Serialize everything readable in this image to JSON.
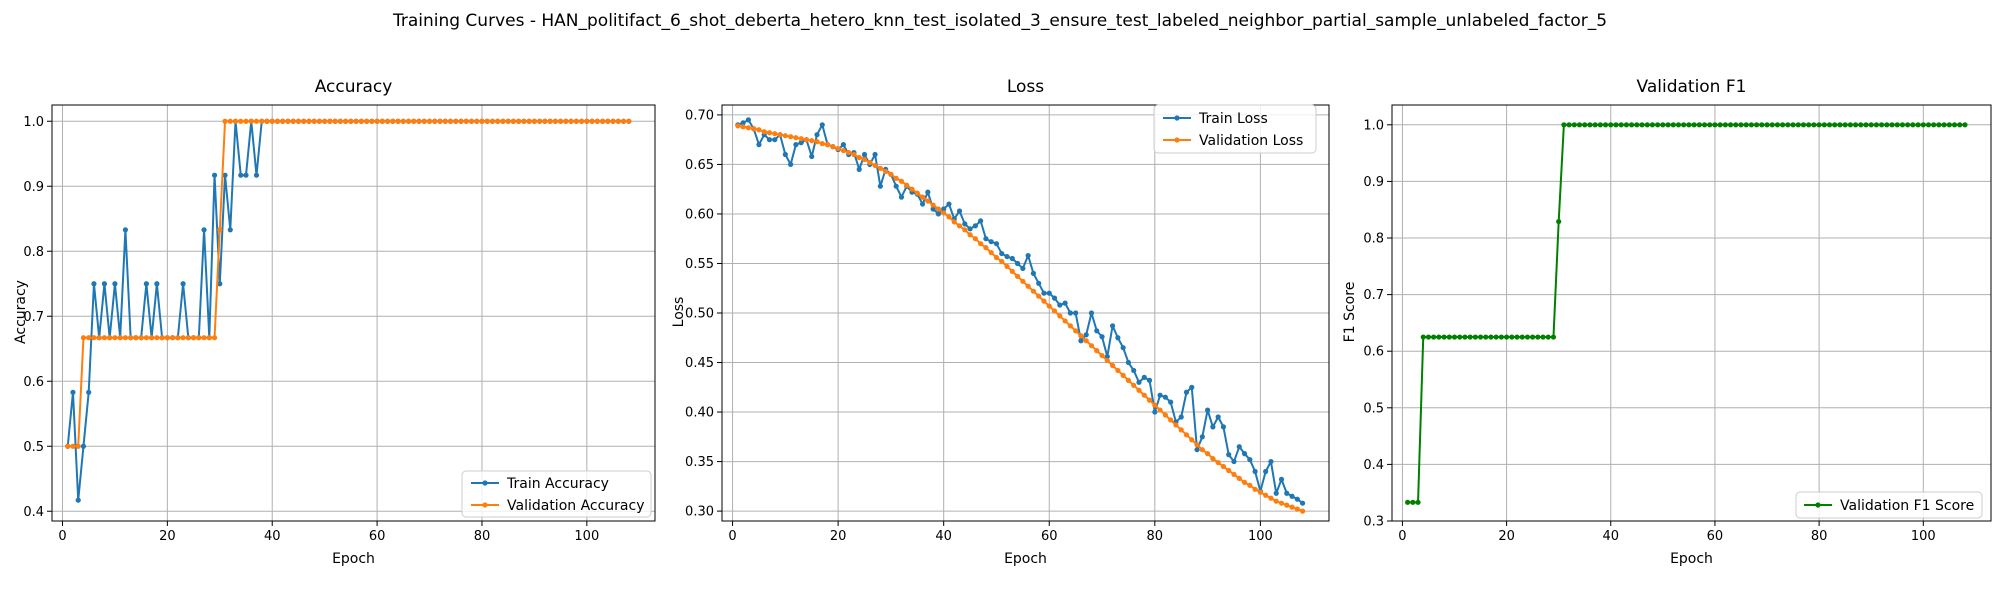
{
  "figure": {
    "title": "Training Curves - HAN_politifact_6_shot_deberta_hetero_knn_test_isolated_3_ensure_test_labeled_neighbor_partial_sample_unlabeled_factor_5"
  },
  "colors": {
    "train": "#1f77b4",
    "validation": "#ff7f0e",
    "f1": "#008000",
    "grid": "#b0b0b0"
  },
  "chart_data": [
    {
      "type": "line",
      "title": "Accuracy",
      "xlabel": "Epoch",
      "ylabel": "Accuracy",
      "xlim": [
        -2,
        113
      ],
      "ylim": [
        0.385,
        1.025
      ],
      "xticks": [
        0,
        20,
        40,
        60,
        80,
        100
      ],
      "yticks": [
        0.4,
        0.5,
        0.6,
        0.7,
        0.8,
        0.9,
        1.0
      ],
      "grid": true,
      "legend": "lower-right",
      "x": {
        "start": 1,
        "end": 108
      },
      "series": [
        {
          "name": "Train Accuracy",
          "color": "#1f77b4",
          "values": [
            0.5,
            0.583,
            0.417,
            0.5,
            0.583,
            0.75,
            0.667,
            0.75,
            0.667,
            0.75,
            0.667,
            0.833,
            0.667,
            0.667,
            0.667,
            0.75,
            0.667,
            0.75,
            0.667,
            0.667,
            0.667,
            0.667,
            0.75,
            0.667,
            0.667,
            0.667,
            0.833,
            0.667,
            0.917,
            0.75,
            0.917,
            0.833,
            1.0,
            0.917,
            0.917,
            1.0,
            0.917,
            1.0,
            1.0,
            1.0,
            1.0,
            1.0,
            1.0,
            1.0,
            1.0,
            1.0,
            1.0,
            1.0,
            1.0,
            1.0,
            1.0,
            1.0,
            1.0,
            1.0,
            1.0,
            1.0,
            1.0,
            1.0,
            1.0,
            1.0,
            1.0,
            1.0,
            1.0,
            1.0,
            1.0,
            1.0,
            1.0,
            1.0,
            1.0,
            1.0,
            1.0,
            1.0,
            1.0,
            1.0,
            1.0,
            1.0,
            1.0,
            1.0,
            1.0,
            1.0,
            1.0,
            1.0,
            1.0,
            1.0,
            1.0,
            1.0,
            1.0,
            1.0,
            1.0,
            1.0,
            1.0,
            1.0,
            1.0,
            1.0,
            1.0,
            1.0,
            1.0,
            1.0,
            1.0,
            1.0,
            1.0,
            1.0,
            1.0,
            1.0,
            1.0,
            1.0,
            1.0,
            1.0
          ]
        },
        {
          "name": "Validation Accuracy",
          "color": "#ff7f0e",
          "values": [
            0.5,
            0.5,
            0.5,
            0.667,
            0.667,
            0.667,
            0.667,
            0.667,
            0.667,
            0.667,
            0.667,
            0.667,
            0.667,
            0.667,
            0.667,
            0.667,
            0.667,
            0.667,
            0.667,
            0.667,
            0.667,
            0.667,
            0.667,
            0.667,
            0.667,
            0.667,
            0.667,
            0.667,
            0.667,
            0.833,
            1.0,
            1.0,
            1.0,
            1.0,
            1.0,
            1.0,
            1.0,
            1.0,
            1.0,
            1.0,
            1.0,
            1.0,
            1.0,
            1.0,
            1.0,
            1.0,
            1.0,
            1.0,
            1.0,
            1.0,
            1.0,
            1.0,
            1.0,
            1.0,
            1.0,
            1.0,
            1.0,
            1.0,
            1.0,
            1.0,
            1.0,
            1.0,
            1.0,
            1.0,
            1.0,
            1.0,
            1.0,
            1.0,
            1.0,
            1.0,
            1.0,
            1.0,
            1.0,
            1.0,
            1.0,
            1.0,
            1.0,
            1.0,
            1.0,
            1.0,
            1.0,
            1.0,
            1.0,
            1.0,
            1.0,
            1.0,
            1.0,
            1.0,
            1.0,
            1.0,
            1.0,
            1.0,
            1.0,
            1.0,
            1.0,
            1.0,
            1.0,
            1.0,
            1.0,
            1.0,
            1.0,
            1.0,
            1.0,
            1.0,
            1.0,
            1.0,
            1.0,
            1.0
          ]
        }
      ]
    },
    {
      "type": "line",
      "title": "Loss",
      "xlabel": "Epoch",
      "ylabel": "Loss",
      "xlim": [
        -2,
        113
      ],
      "ylim": [
        0.29,
        0.71
      ],
      "xticks": [
        0,
        20,
        40,
        60,
        80,
        100
      ],
      "yticks": [
        0.3,
        0.35,
        0.4,
        0.45,
        0.5,
        0.55,
        0.6,
        0.65,
        0.7
      ],
      "grid": true,
      "legend": "upper-right",
      "x": {
        "start": 1,
        "end": 108
      },
      "series": [
        {
          "name": "Train Loss",
          "color": "#1f77b4",
          "values": [
            0.69,
            0.692,
            0.695,
            0.686,
            0.67,
            0.68,
            0.675,
            0.675,
            0.68,
            0.66,
            0.65,
            0.67,
            0.672,
            0.675,
            0.658,
            0.68,
            0.69,
            0.67,
            0.668,
            0.665,
            0.67,
            0.66,
            0.662,
            0.645,
            0.66,
            0.65,
            0.66,
            0.628,
            0.645,
            0.64,
            0.628,
            0.617,
            0.628,
            0.622,
            0.62,
            0.61,
            0.622,
            0.605,
            0.6,
            0.605,
            0.61,
            0.595,
            0.603,
            0.59,
            0.585,
            0.588,
            0.593,
            0.575,
            0.572,
            0.57,
            0.56,
            0.557,
            0.555,
            0.55,
            0.545,
            0.558,
            0.54,
            0.53,
            0.52,
            0.52,
            0.515,
            0.508,
            0.51,
            0.5,
            0.5,
            0.472,
            0.478,
            0.5,
            0.482,
            0.476,
            0.456,
            0.487,
            0.475,
            0.465,
            0.45,
            0.442,
            0.43,
            0.435,
            0.432,
            0.4,
            0.417,
            0.415,
            0.41,
            0.39,
            0.395,
            0.42,
            0.425,
            0.362,
            0.375,
            0.402,
            0.385,
            0.395,
            0.385,
            0.357,
            0.35,
            0.365,
            0.358,
            0.352,
            0.34,
            0.32,
            0.34,
            0.35,
            0.318,
            0.332,
            0.318,
            0.315,
            0.312,
            0.308
          ]
        },
        {
          "name": "Validation Loss",
          "color": "#ff7f0e",
          "values": [
            0.689,
            0.688,
            0.687,
            0.686,
            0.685,
            0.683,
            0.682,
            0.681,
            0.68,
            0.679,
            0.678,
            0.677,
            0.676,
            0.675,
            0.674,
            0.673,
            0.671,
            0.67,
            0.668,
            0.666,
            0.664,
            0.662,
            0.66,
            0.657,
            0.655,
            0.652,
            0.649,
            0.646,
            0.643,
            0.64,
            0.636,
            0.633,
            0.629,
            0.625,
            0.621,
            0.617,
            0.613,
            0.609,
            0.605,
            0.601,
            0.597,
            0.592,
            0.588,
            0.584,
            0.579,
            0.575,
            0.57,
            0.566,
            0.561,
            0.556,
            0.552,
            0.547,
            0.542,
            0.537,
            0.532,
            0.527,
            0.522,
            0.517,
            0.512,
            0.507,
            0.502,
            0.497,
            0.492,
            0.487,
            0.482,
            0.477,
            0.472,
            0.467,
            0.462,
            0.457,
            0.452,
            0.447,
            0.442,
            0.437,
            0.432,
            0.427,
            0.422,
            0.417,
            0.412,
            0.407,
            0.402,
            0.397,
            0.392,
            0.387,
            0.382,
            0.377,
            0.372,
            0.367,
            0.362,
            0.358,
            0.353,
            0.349,
            0.345,
            0.341,
            0.337,
            0.333,
            0.329,
            0.326,
            0.322,
            0.319,
            0.316,
            0.313,
            0.31,
            0.308,
            0.306,
            0.304,
            0.302,
            0.3
          ]
        }
      ]
    },
    {
      "type": "line",
      "title": "Validation F1",
      "xlabel": "Epoch",
      "ylabel": "F1 Score",
      "xlim": [
        -2,
        113
      ],
      "ylim": [
        0.3,
        1.035
      ],
      "xticks": [
        0,
        20,
        40,
        60,
        80,
        100
      ],
      "yticks": [
        0.3,
        0.4,
        0.5,
        0.6,
        0.7,
        0.8,
        0.9,
        1.0
      ],
      "grid": true,
      "legend": "lower-right",
      "x": {
        "start": 1,
        "end": 108
      },
      "series": [
        {
          "name": "Validation F1 Score",
          "color": "#008000",
          "values": [
            0.333,
            0.333,
            0.333,
            0.625,
            0.625,
            0.625,
            0.625,
            0.625,
            0.625,
            0.625,
            0.625,
            0.625,
            0.625,
            0.625,
            0.625,
            0.625,
            0.625,
            0.625,
            0.625,
            0.625,
            0.625,
            0.625,
            0.625,
            0.625,
            0.625,
            0.625,
            0.625,
            0.625,
            0.625,
            0.829,
            1.0,
            1.0,
            1.0,
            1.0,
            1.0,
            1.0,
            1.0,
            1.0,
            1.0,
            1.0,
            1.0,
            1.0,
            1.0,
            1.0,
            1.0,
            1.0,
            1.0,
            1.0,
            1.0,
            1.0,
            1.0,
            1.0,
            1.0,
            1.0,
            1.0,
            1.0,
            1.0,
            1.0,
            1.0,
            1.0,
            1.0,
            1.0,
            1.0,
            1.0,
            1.0,
            1.0,
            1.0,
            1.0,
            1.0,
            1.0,
            1.0,
            1.0,
            1.0,
            1.0,
            1.0,
            1.0,
            1.0,
            1.0,
            1.0,
            1.0,
            1.0,
            1.0,
            1.0,
            1.0,
            1.0,
            1.0,
            1.0,
            1.0,
            1.0,
            1.0,
            1.0,
            1.0,
            1.0,
            1.0,
            1.0,
            1.0,
            1.0,
            1.0,
            1.0,
            1.0,
            1.0,
            1.0,
            1.0,
            1.0,
            1.0,
            1.0,
            1.0,
            1.0
          ]
        }
      ]
    }
  ]
}
